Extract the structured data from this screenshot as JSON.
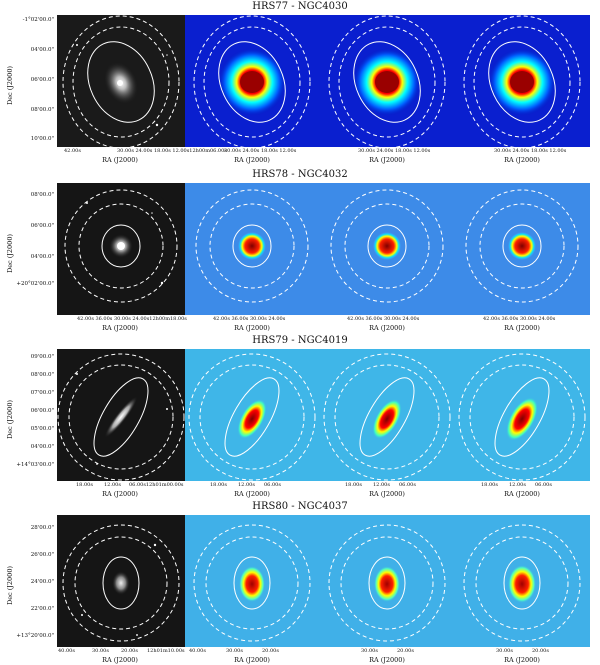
{
  "figure": {
    "x_axis_title": "RA (J2000)",
    "y_axis_title": "Dec (J2000)",
    "colormap": [
      "#00007f",
      "#0000ff",
      "#00ffff",
      "#ffff00",
      "#ff0000",
      "#7f0000"
    ],
    "rows": [
      {
        "title": "HRS77 - NGC4030",
        "dec_ticks": [
          "-1°02'00.0\"",
          "04'00.0\"",
          "06'00.0\"",
          "08'00.0\"",
          "10'00.0\""
        ],
        "ra_ticks": [
          [
            "42.00s",
            "30.00s 24.00s 18.00s 12.00s12h00m06.00s"
          ],
          [
            "30.00s 24.00s 18.00s 12.00s"
          ],
          [
            "30.00s 24.00s 18.00s 12.00s"
          ],
          [
            "30.00s 24.00s 18.00s 12.00s"
          ]
        ]
      },
      {
        "title": "HRS78 - NGC4032",
        "dec_ticks": [
          "08'00.0\"",
          "06'00.0\"",
          "04'00.0\"",
          "+20°02'00.0\""
        ],
        "ra_ticks": [
          [
            "42.00s 36.00s 30.00s 24.00s12h00m18.00s"
          ],
          [
            "42.00s 36.00s 30.00s 24.00s"
          ],
          [
            "42.00s 36.00s 30.00s 24.00s"
          ],
          [
            "42.00s 36.00s 30.00s 24.00s"
          ]
        ]
      },
      {
        "title": "HRS79 - NGC4019",
        "dec_ticks": [
          "09'00.0\"",
          "08'00.0\"",
          "07'00.0\"",
          "06'00.0\"",
          "05'00.0\"",
          "04'00.0\"",
          "+14°03'00.0\""
        ],
        "ra_ticks": [
          [
            "18.00s",
            "12.00s",
            "06.00s12h01m00.00s"
          ],
          [
            "18.00s",
            "12.00s",
            "06.00s"
          ],
          [
            "18.00s",
            "12.00s",
            "06.00s"
          ],
          [
            "18.00s",
            "12.00s",
            "06.00s"
          ]
        ]
      },
      {
        "title": "HRS80 - NGC4037",
        "dec_ticks": [
          "28'00.0\"",
          "26'00.0\"",
          "24'00.0\"",
          "22'00.0\"",
          "+13°20'00.0\""
        ],
        "ra_ticks": [
          [
            "40.00s",
            "30.00s",
            "20.00s",
            "12h01m10.00s"
          ],
          [
            "40.00s",
            "30.00s",
            "20.00s"
          ],
          [
            "30.00s",
            "20.00s"
          ],
          [
            "30.00s",
            "20.00s"
          ]
        ]
      }
    ]
  }
}
